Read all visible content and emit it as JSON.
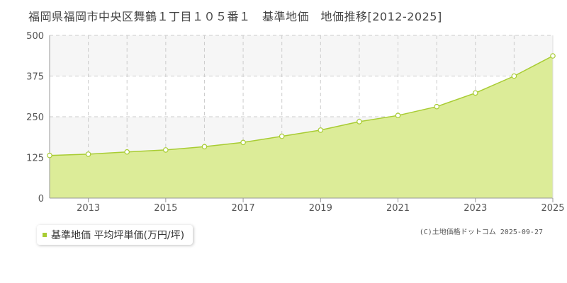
{
  "title": "福岡県福岡市中央区舞鶴１丁目１０５番１　基準地価　地価推移[2012-2025]",
  "legend_label": "基準地価 平均坪単価(万円/坪)",
  "credit": "(C)土地価格ドットコム 2025-09-27",
  "colors": {
    "fill": "#dcec98",
    "line": "#a8cc33",
    "point_stroke": "#a8cc33",
    "band": "#f6f6f6",
    "grid": "#cccccc"
  },
  "chart_data": {
    "type": "area",
    "x": [
      2012,
      2013,
      2014,
      2015,
      2016,
      2017,
      2018,
      2019,
      2020,
      2021,
      2022,
      2023,
      2024,
      2025
    ],
    "series": [
      {
        "name": "基準地価 平均坪単価(万円/坪)",
        "values": [
          131,
          135,
          142,
          148,
          158,
          171,
          190,
          209,
          235,
          254,
          281,
          323,
          375,
          437
        ]
      }
    ],
    "xlim": [
      2012,
      2025
    ],
    "ylim": [
      0,
      500
    ],
    "yticks": [
      "0",
      "125",
      "250",
      "375",
      "500"
    ],
    "xticks": [
      "2013",
      "2015",
      "2017",
      "2019",
      "2021",
      "2023",
      "2025"
    ],
    "grid": true
  }
}
